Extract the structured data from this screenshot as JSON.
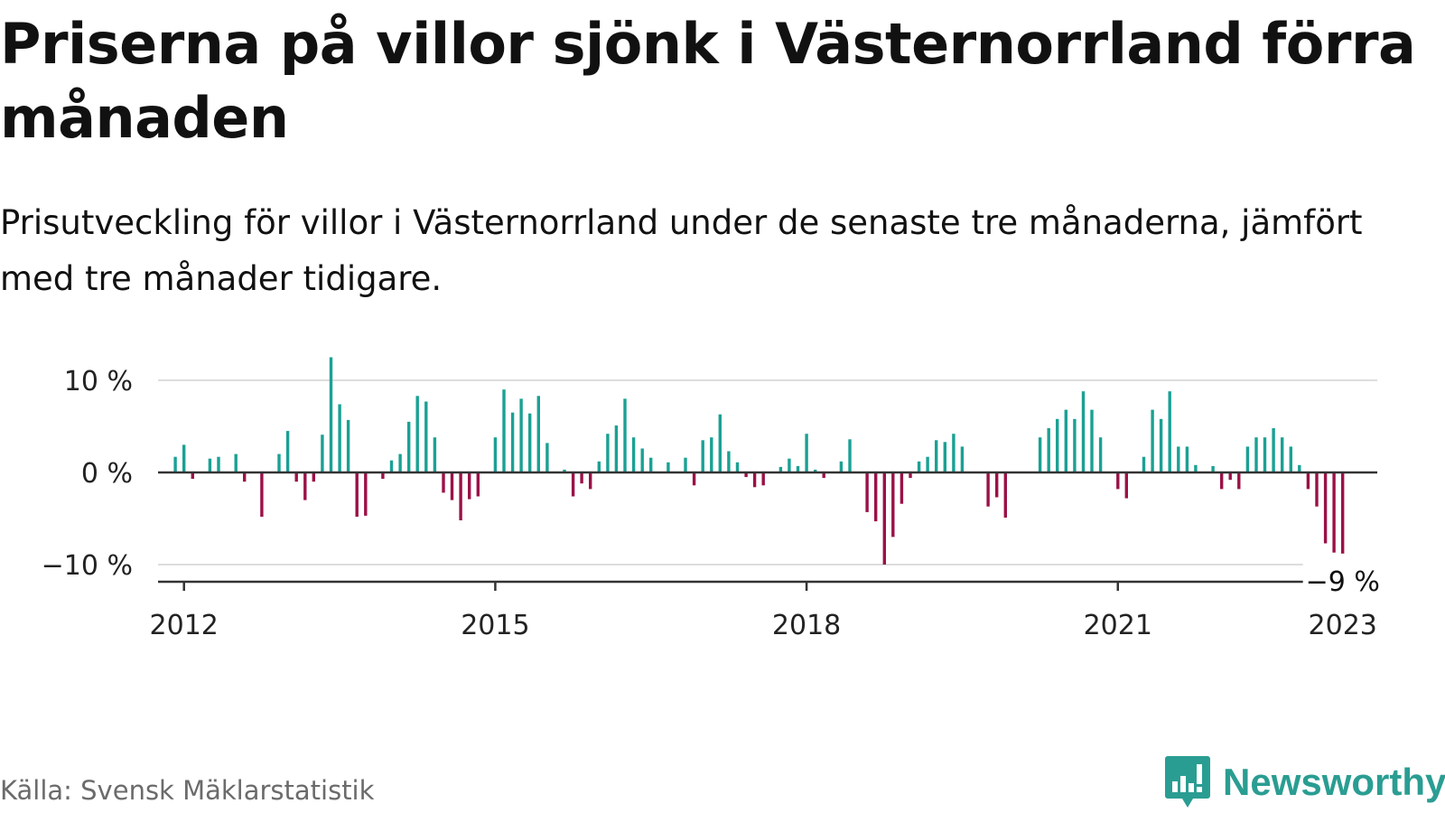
{
  "title": "Priserna på villor sjönk i Västernorrland förra månaden",
  "subtitle": "Prisutveckling för villor i Västernorrland under de senaste tre månaderna, jämfört med tre månader tidigare.",
  "source": "Källa: Svensk Mäklarstatistik",
  "brand": {
    "name": "Newsworthy",
    "icon": "newsworthy-logo-icon",
    "color": "#2a9d92"
  },
  "colors": {
    "positive": "#1aa194",
    "negative": "#9b1147",
    "grid": "#dddddd",
    "axis": "#333333"
  },
  "chart_data": {
    "type": "bar",
    "title": "Priserna på villor sjönk i Västernorrland förra månaden",
    "subtitle": "Prisutveckling för villor i Västernorrland under de senaste tre månaderna, jämfört med tre månader tidigare.",
    "xlabel": "",
    "ylabel": "",
    "x_unit": "month",
    "x_range": [
      "2011-10",
      "2023-07"
    ],
    "ylim": [
      -12,
      12
    ],
    "y_ticks": [
      {
        "value": 10,
        "label": "10 %"
      },
      {
        "value": 0,
        "label": "0 %"
      },
      {
        "value": -10,
        "label": "−10 %"
      }
    ],
    "x_ticks": [
      {
        "date": "2012-01",
        "label": "2012"
      },
      {
        "date": "2015-01",
        "label": "2015"
      },
      {
        "date": "2018-01",
        "label": "2018"
      },
      {
        "date": "2021-01",
        "label": "2021"
      },
      {
        "date": "2023-03",
        "label": "2023"
      }
    ],
    "grid": true,
    "last_value_label": "−9 %",
    "series": [
      {
        "start": "2011-12",
        "values": [
          1.7,
          3.0,
          -0.7,
          0,
          1.5,
          1.7,
          0,
          2.0,
          -1.0,
          0,
          -4.8,
          0,
          2.0,
          4.5,
          -1.0,
          -3.0,
          -1.0,
          4.1,
          12.5,
          7.4,
          5.7,
          -4.8,
          -4.7,
          0,
          -0.7,
          1.3,
          2.0,
          5.5,
          8.3,
          7.7,
          3.8,
          -2.2,
          -3.0,
          -5.2,
          -2.9,
          -2.6,
          0,
          3.8,
          9.0,
          6.5,
          8.0,
          6.4,
          8.3,
          3.2,
          0,
          0.3,
          -2.6,
          -1.2,
          -1.8,
          1.2,
          4.2,
          5.1,
          8.0,
          3.8,
          2.6,
          1.6,
          0,
          1.1,
          0,
          1.6,
          -1.4,
          3.5,
          3.8,
          6.3,
          2.3,
          1.1,
          -0.5,
          -1.6,
          -1.4,
          0,
          0.6,
          1.5,
          0.7,
          4.2,
          0.3,
          -0.6,
          0,
          1.2,
          3.6,
          0,
          -4.3,
          -5.3,
          -10.0,
          -7.0,
          -3.4,
          -0.6,
          1.2,
          1.7,
          3.5,
          3.3,
          4.2,
          2.8,
          0,
          0,
          -3.7,
          -2.7,
          -4.9,
          0,
          0,
          0,
          3.8,
          4.8,
          5.8,
          6.8,
          5.8,
          8.8,
          6.8,
          3.8,
          0,
          -1.8,
          -2.8,
          0,
          1.7,
          6.8,
          5.8,
          8.8,
          2.8,
          2.8,
          0.8,
          0,
          0.7,
          -1.8,
          -0.8,
          -1.8,
          2.8,
          3.8,
          3.8,
          4.8,
          3.8,
          2.8,
          0.8,
          -1.8,
          -3.7,
          -7.7,
          -8.7,
          -8.8
        ]
      }
    ]
  }
}
